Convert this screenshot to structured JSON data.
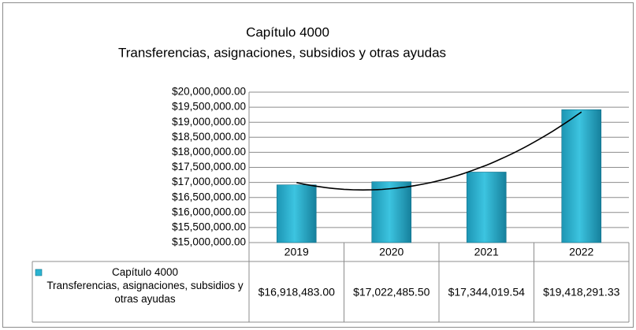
{
  "chart_data": {
    "type": "bar",
    "title": "Capítulo 4000",
    "subtitle": "Transferencias, asignaciones, subsidios y otras ayudas",
    "categories": [
      "2019",
      "2020",
      "2021",
      "2022"
    ],
    "series": [
      {
        "name": "Capítulo 4000\nTransferencias, asignaciones, subsidios y otras ayudas",
        "color": "#2bb3d0",
        "values": [
          16918483.0,
          17022485.5,
          17344019.54,
          19418291.33
        ],
        "value_labels": [
          "$16,918,483.00",
          "$17,022,485.50",
          "$17,344,019.54",
          "$19,418,291.33"
        ]
      }
    ],
    "ylim": [
      15000000,
      20000000
    ],
    "yticks": [
      {
        "value": 15000000,
        "label": "$15,000,000.00"
      },
      {
        "value": 15500000,
        "label": "$15,500,000.00"
      },
      {
        "value": 16000000,
        "label": "$16,000,000.00"
      },
      {
        "value": 16500000,
        "label": "$16,500,000.00"
      },
      {
        "value": 17000000,
        "label": "$17,000,000.00"
      },
      {
        "value": 17500000,
        "label": "$17,500,000.00"
      },
      {
        "value": 18000000,
        "label": "$18,000,000.00"
      },
      {
        "value": 18500000,
        "label": "$18,500,000.00"
      },
      {
        "value": 19000000,
        "label": "$19,000,000.00"
      },
      {
        "value": 19500000,
        "label": "$19,500,000.00"
      },
      {
        "value": 20000000,
        "label": "$20,000,000.00"
      }
    ],
    "grid": true,
    "trendline": "polynomial",
    "data_table": true
  }
}
